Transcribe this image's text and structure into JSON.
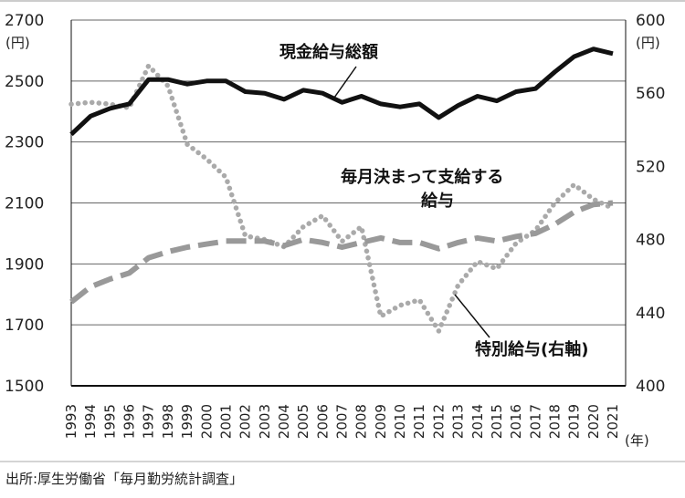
{
  "chart_data": {
    "type": "line",
    "x": [
      "1993",
      "1994",
      "1995",
      "1996",
      "1997",
      "1998",
      "1999",
      "2000",
      "2001",
      "2002",
      "2003",
      "2004",
      "2005",
      "2006",
      "2007",
      "2008",
      "2009",
      "2010",
      "2011",
      "2012",
      "2013",
      "2014",
      "2015",
      "2016",
      "2017",
      "2018",
      "2019",
      "2020",
      "2021"
    ],
    "x_unit": "(年)",
    "y_left": {
      "ticks": [
        "1500",
        "1700",
        "1900",
        "2100",
        "2300",
        "2500",
        "2700"
      ],
      "unit": "(円)",
      "ylim": [
        1500,
        2700
      ]
    },
    "y_right": {
      "ticks": [
        "400",
        "440",
        "480",
        "520",
        "560",
        "600"
      ],
      "unit": "(円)",
      "ylim": [
        400,
        600
      ]
    },
    "series": [
      {
        "name": "現金給与総額",
        "axis": "left",
        "style": "solid",
        "color": "#111111",
        "values": [
          2325,
          2385,
          2410,
          2425,
          2505,
          2505,
          2490,
          2500,
          2500,
          2465,
          2460,
          2440,
          2470,
          2460,
          2430,
          2450,
          2425,
          2415,
          2425,
          2380,
          2420,
          2450,
          2435,
          2465,
          2475,
          2530,
          2580,
          2605,
          2590
        ]
      },
      {
        "name": "毎月決まって支給する給与",
        "axis": "left",
        "style": "dashed",
        "color": "#999999",
        "values": [
          1775,
          1825,
          1850,
          1870,
          1920,
          1940,
          1955,
          1965,
          1975,
          1975,
          1975,
          1960,
          1980,
          1970,
          1955,
          1970,
          1985,
          1970,
          1970,
          1950,
          1970,
          1985,
          1975,
          1990,
          2000,
          2030,
          2070,
          2095,
          2100
        ]
      },
      {
        "name": "特別給与(右軸)",
        "axis": "right",
        "style": "dotted",
        "color": "#aaaaaa",
        "values": [
          554,
          555,
          554,
          552,
          575,
          564,
          532,
          524,
          514,
          482,
          480,
          476,
          487,
          493,
          479,
          487,
          438,
          444,
          447,
          430,
          455,
          468,
          464,
          478,
          485,
          500,
          510,
          502,
          497
        ]
      }
    ],
    "annotations": [
      "現金給与総額",
      "毎月決まって支給する",
      "給与",
      "特別給与(右軸)"
    ],
    "source": "出所:厚生労働省「毎月勤労統計調査」",
    "grid": "horizontal",
    "legend": "none"
  }
}
